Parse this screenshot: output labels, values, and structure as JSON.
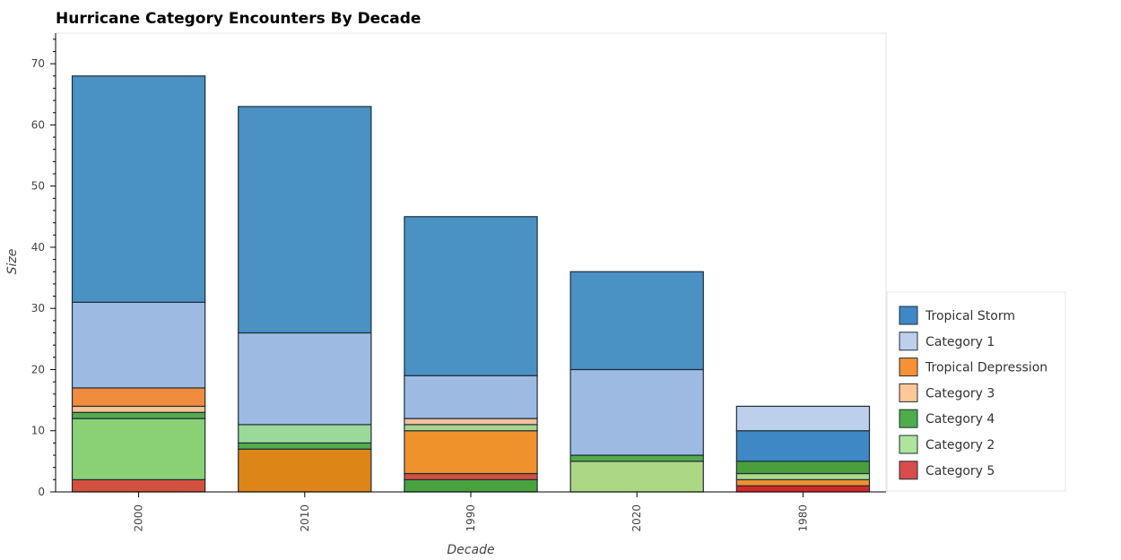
{
  "chart_data": {
    "type": "bar",
    "stacked": true,
    "title": "Hurricane Category Encounters By Decade",
    "xlabel": "Decade",
    "ylabel": "Size",
    "ylim": [
      0,
      75
    ],
    "yticks": [
      0,
      10,
      20,
      30,
      40,
      50,
      60,
      70
    ],
    "categories": [
      "2000",
      "2010",
      "1990",
      "2020",
      "1980"
    ],
    "legend_position": "bottom-right",
    "bars": [
      {
        "category": "2000",
        "segments": [
          {
            "series": "Category 5",
            "value": 2,
            "color": "#d3503f"
          },
          {
            "series": "Category 2",
            "value": 10,
            "color": "#8ad175"
          },
          {
            "series": "Category 4",
            "value": 1,
            "color": "#54ab4b"
          },
          {
            "series": "Category 3",
            "value": 1,
            "color": "#f8c293"
          },
          {
            "series": "Tropical Depression",
            "value": 3,
            "color": "#ef8c3e"
          },
          {
            "series": "Category 1",
            "value": 14,
            "color": "#9dbbe2"
          },
          {
            "series": "Tropical Storm",
            "value": 37,
            "color": "#4a91c4"
          }
        ]
      },
      {
        "category": "2010",
        "segments": [
          {
            "series": "Tropical Depression",
            "value": 7,
            "color": "#dd8617"
          },
          {
            "series": "Category 4",
            "value": 1,
            "color": "#54ab4b"
          },
          {
            "series": "Category 2",
            "value": 3,
            "color": "#9ad998"
          },
          {
            "series": "Category 1",
            "value": 15,
            "color": "#9dbbe2"
          },
          {
            "series": "Tropical Storm",
            "value": 37,
            "color": "#4a91c4"
          }
        ]
      },
      {
        "category": "1990",
        "segments": [
          {
            "series": "Category 4",
            "value": 2,
            "color": "#48a23f"
          },
          {
            "series": "Category 5",
            "value": 1,
            "color": "#d3503f"
          },
          {
            "series": "Tropical Depression",
            "value": 7,
            "color": "#ef922c"
          },
          {
            "series": "Category 2",
            "value": 1,
            "color": "#a6d68e"
          },
          {
            "series": "Category 3",
            "value": 1,
            "color": "#f3c09e"
          },
          {
            "series": "Category 1",
            "value": 7,
            "color": "#9dbbe2"
          },
          {
            "series": "Tropical Storm",
            "value": 26,
            "color": "#4a91c4"
          }
        ]
      },
      {
        "category": "2020",
        "segments": [
          {
            "series": "Category 2",
            "value": 5,
            "color": "#acd784"
          },
          {
            "series": "Category 4",
            "value": 1,
            "color": "#54ab4b"
          },
          {
            "series": "Category 1",
            "value": 14,
            "color": "#9dbbe2"
          },
          {
            "series": "Tropical Storm",
            "value": 16,
            "color": "#4a91c4"
          }
        ]
      },
      {
        "category": "1980",
        "segments": [
          {
            "series": "Category 5",
            "value": 1,
            "color": "#d62728"
          },
          {
            "series": "Tropical Depression",
            "value": 1,
            "color": "#ef922c"
          },
          {
            "series": "Category 2",
            "value": 1,
            "color": "#a9dc8b"
          },
          {
            "series": "Category 4",
            "value": 2,
            "color": "#4a9f3c"
          },
          {
            "series": "Tropical Storm",
            "value": 5,
            "color": "#3e88c6"
          },
          {
            "series": "Category 1",
            "value": 4,
            "color": "#bcd0eb"
          }
        ]
      }
    ],
    "legend": [
      {
        "name": "Tropical Storm",
        "color": "#3e88c6"
      },
      {
        "name": "Category 1",
        "color": "#bcd0eb"
      },
      {
        "name": "Tropical Depression",
        "color": "#f79133"
      },
      {
        "name": "Category 3",
        "color": "#ffc896"
      },
      {
        "name": "Category 4",
        "color": "#4ead4b"
      },
      {
        "name": "Category 2",
        "color": "#aee59a"
      },
      {
        "name": "Category 5",
        "color": "#d94c4c"
      }
    ]
  }
}
